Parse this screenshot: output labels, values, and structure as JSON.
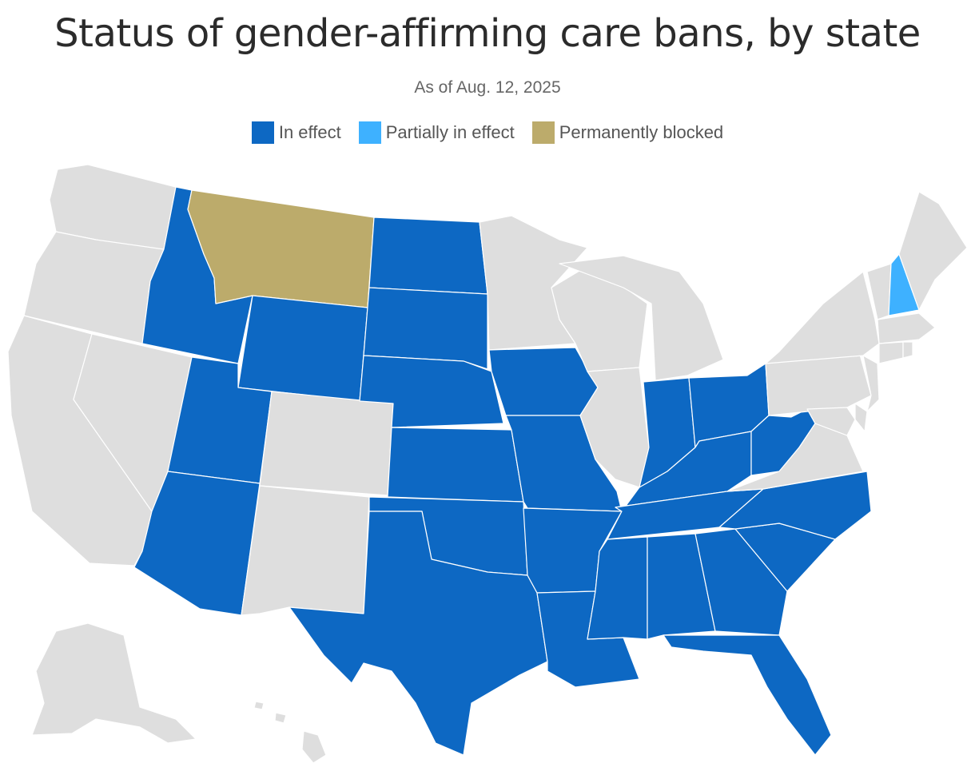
{
  "header": {
    "title": "Status of gender-affirming care bans, by state",
    "subtitle": "As of Aug. 12, 2025"
  },
  "legend": [
    {
      "label": "In effect",
      "color": "#0d68c3"
    },
    {
      "label": "Partially in effect",
      "color": "#3eb1ff"
    },
    {
      "label": "Permanently blocked",
      "color": "#bcab6b"
    }
  ],
  "colors": {
    "no_ban": "#dedede",
    "in_effect": "#0d68c3",
    "partial": "#3eb1ff",
    "blocked": "#bcab6b"
  },
  "states": {
    "WA": "none",
    "OR": "none",
    "CA": "none",
    "NV": "none",
    "ID": "in_effect",
    "MT": "blocked",
    "WY": "in_effect",
    "UT": "in_effect",
    "AZ": "in_effect",
    "CO": "none",
    "NM": "none",
    "ND": "in_effect",
    "SD": "in_effect",
    "NE": "in_effect",
    "KS": "in_effect",
    "OK": "in_effect",
    "TX": "in_effect",
    "MN": "none",
    "IA": "in_effect",
    "MO": "in_effect",
    "AR": "in_effect",
    "LA": "in_effect",
    "WI": "none",
    "MI": "none",
    "IL": "none",
    "IN": "in_effect",
    "OH": "in_effect",
    "KY": "in_effect",
    "TN": "in_effect",
    "MS": "in_effect",
    "AL": "in_effect",
    "GA": "in_effect",
    "FL": "in_effect",
    "SC": "in_effect",
    "NC": "in_effect",
    "VA": "none",
    "WV": "in_effect",
    "PA": "none",
    "NY": "none",
    "VT": "none",
    "NH": "partial",
    "ME": "none",
    "MA": "none",
    "CT": "none",
    "RI": "none",
    "NJ": "none",
    "DE": "none",
    "MD": "none",
    "AK": "none",
    "HI": "none"
  }
}
